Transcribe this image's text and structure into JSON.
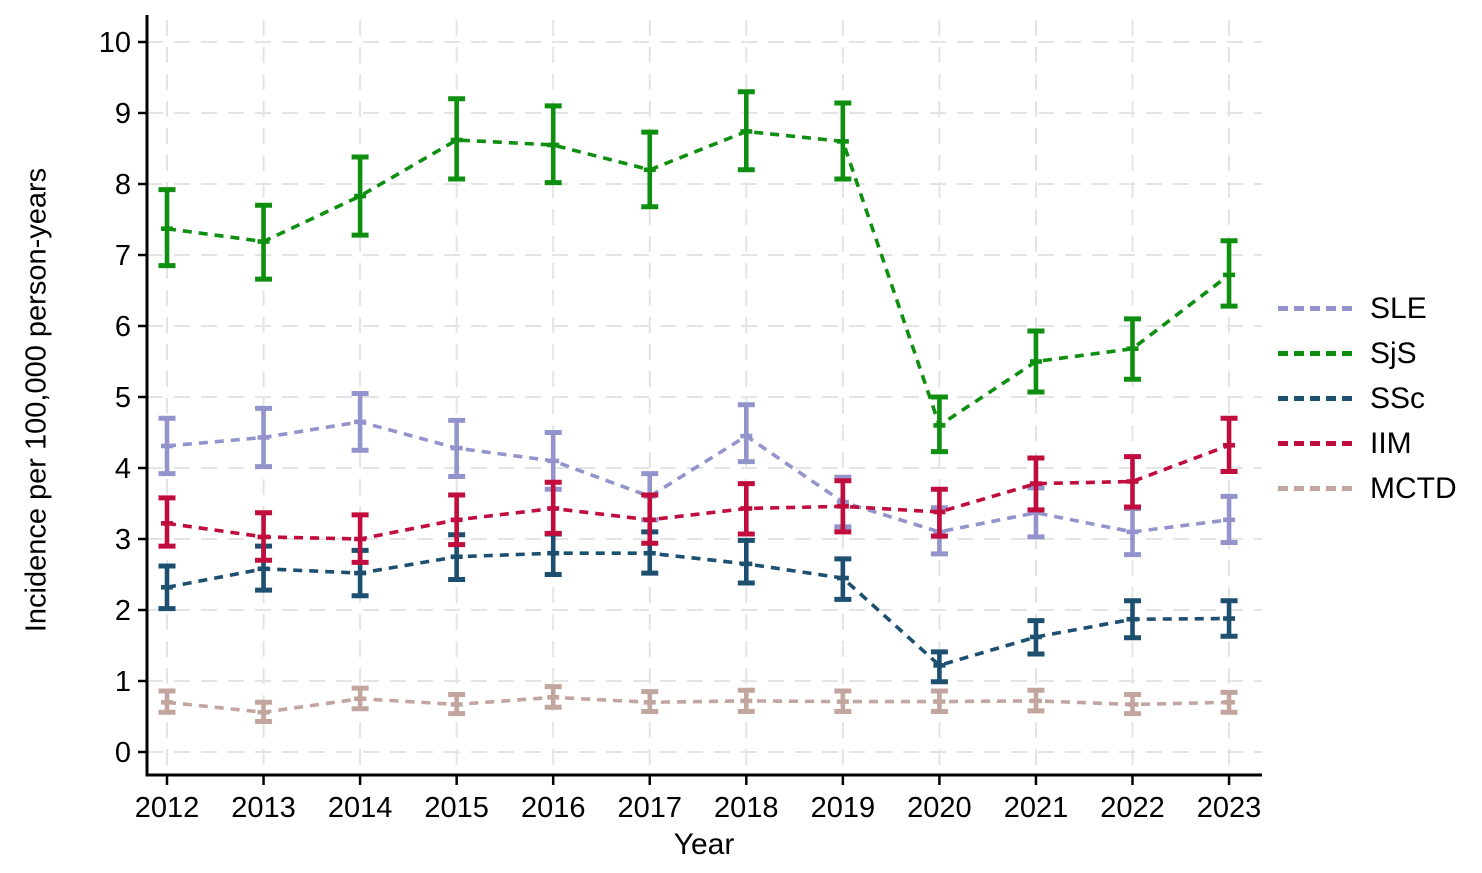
{
  "figure": {
    "y_axis_title": "Incidence per 100,000 person-years",
    "x_axis_title": "Year"
  },
  "chart_data": {
    "type": "line",
    "title": "",
    "xlabel": "Year",
    "ylabel": "Incidence per 100,000 person-years",
    "categories": [
      "2012",
      "2013",
      "2014",
      "2015",
      "2016",
      "2017",
      "2018",
      "2019",
      "2020",
      "2021",
      "2022",
      "2023"
    ],
    "y_ticks": [
      0,
      1,
      2,
      3,
      4,
      5,
      6,
      7,
      8,
      9,
      10
    ],
    "ylim": [
      0,
      10
    ],
    "grid": true,
    "line_style": "dotted",
    "error_bars": "95% CI",
    "legend_position": "right-outside",
    "grid_color": "#e4e4e4",
    "axis_color": "#000000",
    "series": [
      {
        "name": "SLE",
        "color": "#9494cd",
        "values": [
          4.31,
          4.43,
          4.65,
          4.28,
          4.1,
          3.6,
          4.45,
          3.52,
          3.1,
          3.37,
          3.1,
          3.27
        ],
        "ci_low": [
          3.92,
          4.02,
          4.25,
          3.88,
          3.7,
          3.27,
          4.09,
          3.17,
          2.79,
          3.03,
          2.78,
          2.95
        ],
        "ci_high": [
          4.7,
          4.84,
          5.05,
          4.67,
          4.5,
          3.92,
          4.89,
          3.87,
          3.44,
          3.72,
          3.43,
          3.6
        ]
      },
      {
        "name": "SjS",
        "color": "#0e8f10",
        "values": [
          7.37,
          7.19,
          7.83,
          8.62,
          8.55,
          8.2,
          8.74,
          8.6,
          4.6,
          5.5,
          5.68,
          6.72
        ],
        "ci_low": [
          6.85,
          6.66,
          7.28,
          8.07,
          8.02,
          7.68,
          8.2,
          8.07,
          4.23,
          5.07,
          5.25,
          6.28
        ],
        "ci_high": [
          7.92,
          7.7,
          8.38,
          9.2,
          9.1,
          8.73,
          9.3,
          9.14,
          5.0,
          5.93,
          6.1,
          7.2
        ]
      },
      {
        "name": "SSc",
        "color": "#1d4f70",
        "values": [
          2.32,
          2.58,
          2.52,
          2.75,
          2.8,
          2.8,
          2.65,
          2.45,
          1.22,
          1.62,
          1.87,
          1.88
        ],
        "ci_low": [
          2.02,
          2.28,
          2.2,
          2.43,
          2.5,
          2.52,
          2.38,
          2.15,
          0.99,
          1.38,
          1.61,
          1.63
        ],
        "ci_high": [
          2.62,
          2.9,
          2.84,
          3.06,
          3.07,
          3.1,
          2.98,
          2.72,
          1.41,
          1.85,
          2.13,
          2.13
        ]
      },
      {
        "name": "IIM",
        "color": "#c00d3d",
        "values": [
          3.22,
          3.03,
          3.0,
          3.27,
          3.43,
          3.27,
          3.43,
          3.46,
          3.38,
          3.78,
          3.81,
          4.32
        ],
        "ci_low": [
          2.9,
          2.7,
          2.67,
          2.92,
          3.08,
          2.94,
          3.07,
          3.1,
          3.04,
          3.41,
          3.45,
          3.95
        ],
        "ci_high": [
          3.58,
          3.37,
          3.34,
          3.62,
          3.8,
          3.62,
          3.78,
          3.82,
          3.7,
          4.14,
          4.16,
          4.7
        ]
      },
      {
        "name": "MCTD",
        "color": "#c2a59e",
        "values": [
          0.7,
          0.56,
          0.75,
          0.67,
          0.77,
          0.7,
          0.72,
          0.71,
          0.71,
          0.72,
          0.67,
          0.7
        ],
        "ci_low": [
          0.56,
          0.43,
          0.61,
          0.54,
          0.63,
          0.57,
          0.57,
          0.57,
          0.57,
          0.58,
          0.54,
          0.56
        ],
        "ci_high": [
          0.86,
          0.7,
          0.9,
          0.81,
          0.92,
          0.85,
          0.87,
          0.86,
          0.86,
          0.87,
          0.81,
          0.84
        ]
      }
    ]
  }
}
